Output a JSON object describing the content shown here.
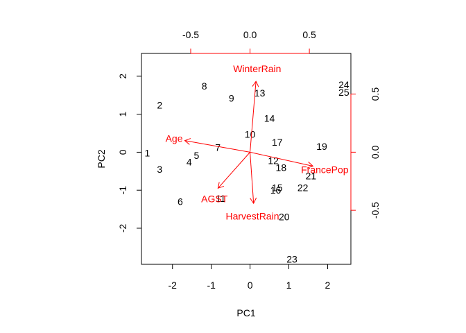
{
  "chart_data": {
    "type": "scatter",
    "subtype": "biplot",
    "xlabel": "PC1",
    "ylabel": "PC2",
    "xlim": [
      -2.8,
      2.6
    ],
    "ylim": [
      -2.95,
      2.6
    ],
    "xticks": [
      -2,
      -1,
      0,
      1,
      2
    ],
    "yticks": [
      -2,
      -1,
      0,
      1,
      2
    ],
    "top_axis": {
      "lim": [
        -0.915,
        0.85
      ],
      "ticks": [
        -0.5,
        0.0,
        0.5
      ],
      "tick_labels": [
        "-0.5",
        "0.0",
        "0.5"
      ]
    },
    "right_axis": {
      "lim": [
        -0.965,
        0.85
      ],
      "ticks": [
        -0.5,
        0.0,
        0.5
      ],
      "tick_labels": [
        "-0.5",
        "0.0",
        "0.5"
      ]
    },
    "observations": [
      {
        "label": "1",
        "x": -2.65,
        "y": -0.02
      },
      {
        "label": "2",
        "x": -2.33,
        "y": 1.24
      },
      {
        "label": "3",
        "x": -2.33,
        "y": -0.45
      },
      {
        "label": "4",
        "x": -1.57,
        "y": -0.26
      },
      {
        "label": "5",
        "x": -1.38,
        "y": -0.08
      },
      {
        "label": "6",
        "x": -1.8,
        "y": -1.3
      },
      {
        "label": "7",
        "x": -0.83,
        "y": 0.13
      },
      {
        "label": "8",
        "x": -1.18,
        "y": 1.74
      },
      {
        "label": "9",
        "x": -0.48,
        "y": 1.42
      },
      {
        "label": "10",
        "x": 0.0,
        "y": 0.47
      },
      {
        "label": "11",
        "x": -0.76,
        "y": -1.22
      },
      {
        "label": "12",
        "x": 0.6,
        "y": -0.22
      },
      {
        "label": "13",
        "x": 0.25,
        "y": 1.56
      },
      {
        "label": "14",
        "x": 0.5,
        "y": 0.89
      },
      {
        "label": "15",
        "x": 0.7,
        "y": -0.93
      },
      {
        "label": "16",
        "x": 0.66,
        "y": -1.0
      },
      {
        "label": "17",
        "x": 0.7,
        "y": 0.26
      },
      {
        "label": "18",
        "x": 0.8,
        "y": -0.4
      },
      {
        "label": "19",
        "x": 1.85,
        "y": 0.15
      },
      {
        "label": "20",
        "x": 0.88,
        "y": -1.7
      },
      {
        "label": "21",
        "x": 1.57,
        "y": -0.62
      },
      {
        "label": "22",
        "x": 1.36,
        "y": -0.93
      },
      {
        "label": "23",
        "x": 1.08,
        "y": -2.81
      },
      {
        "label": "24",
        "x": 2.42,
        "y": 1.78
      },
      {
        "label": "25",
        "x": 2.42,
        "y": 1.58
      }
    ],
    "loadings": [
      {
        "label": "WinterRain",
        "x": 0.05,
        "y": 0.61,
        "label_x": 0.06,
        "label_y": 0.72
      },
      {
        "label": "Age",
        "x": -0.55,
        "y": 0.1,
        "label_x": -0.64,
        "label_y": 0.12
      },
      {
        "label": "FrancePop",
        "x": 0.53,
        "y": -0.12,
        "label_x": 0.63,
        "label_y": -0.15
      },
      {
        "label": "AGST",
        "x": -0.27,
        "y": -0.31,
        "label_x": -0.3,
        "label_y": -0.4
      },
      {
        "label": "HarvestRain",
        "x": 0.03,
        "y": -0.44,
        "label_x": 0.02,
        "label_y": -0.55
      }
    ]
  }
}
